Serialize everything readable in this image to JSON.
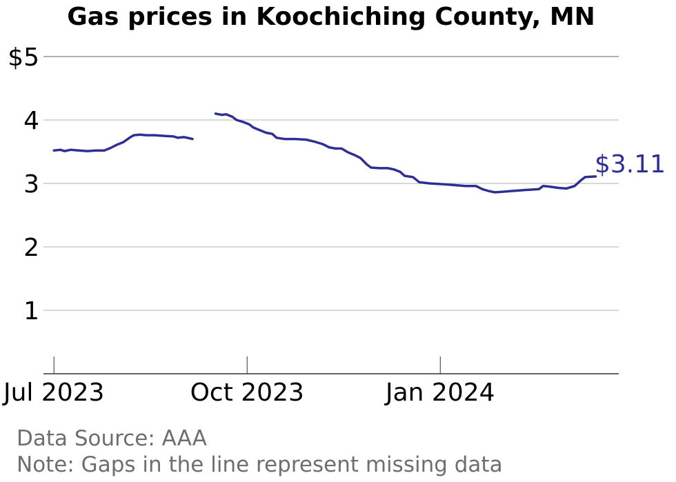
{
  "chart_data": {
    "type": "line",
    "title": "Gas prices in Koochiching County, MN",
    "xlabel": "",
    "ylabel": "",
    "ylim": [
      0,
      5
    ],
    "y_ticks": [
      {
        "value": 1,
        "label": "1"
      },
      {
        "value": 2,
        "label": "2"
      },
      {
        "value": 3,
        "label": "3"
      },
      {
        "value": 4,
        "label": "4"
      },
      {
        "value": 5,
        "label": "$5"
      }
    ],
    "x_range": [
      "2023-06-26",
      "2024-03-26"
    ],
    "x_ticks": [
      {
        "date": "2023-07-01",
        "label": "Jul 2023"
      },
      {
        "date": "2023-10-01",
        "label": "Oct 2023"
      },
      {
        "date": "2024-01-01",
        "label": "Jan 2024"
      }
    ],
    "grid": true,
    "color": "#2e2e96",
    "end_label": "$3.11",
    "series": [
      {
        "segments": [
          [
            [
              "2023-07-01",
              3.52
            ],
            [
              "2023-07-04",
              3.53
            ],
            [
              "2023-07-06",
              3.51
            ],
            [
              "2023-07-09",
              3.53
            ],
            [
              "2023-07-13",
              3.52
            ],
            [
              "2023-07-17",
              3.51
            ],
            [
              "2023-07-21",
              3.52
            ],
            [
              "2023-07-25",
              3.52
            ],
            [
              "2023-07-28",
              3.56
            ],
            [
              "2023-07-31",
              3.61
            ],
            [
              "2023-08-03",
              3.65
            ],
            [
              "2023-08-06",
              3.72
            ],
            [
              "2023-08-08",
              3.76
            ],
            [
              "2023-08-11",
              3.77
            ],
            [
              "2023-08-14",
              3.76
            ],
            [
              "2023-08-18",
              3.76
            ],
            [
              "2023-08-22",
              3.75
            ],
            [
              "2023-08-27",
              3.74
            ],
            [
              "2023-08-29",
              3.72
            ],
            [
              "2023-09-01",
              3.73
            ],
            [
              "2023-09-05",
              3.7
            ]
          ],
          [
            [
              "2023-09-16",
              4.1
            ],
            [
              "2023-09-19",
              4.08
            ],
            [
              "2023-09-21",
              4.09
            ],
            [
              "2023-09-24",
              4.05
            ],
            [
              "2023-09-26",
              4.0
            ],
            [
              "2023-09-29",
              3.97
            ],
            [
              "2023-10-02",
              3.93
            ],
            [
              "2023-10-04",
              3.88
            ],
            [
              "2023-10-07",
              3.84
            ],
            [
              "2023-10-10",
              3.8
            ],
            [
              "2023-10-13",
              3.78
            ],
            [
              "2023-10-15",
              3.72
            ],
            [
              "2023-10-19",
              3.7
            ],
            [
              "2023-10-24",
              3.7
            ],
            [
              "2023-10-29",
              3.69
            ],
            [
              "2023-11-02",
              3.66
            ],
            [
              "2023-11-06",
              3.62
            ],
            [
              "2023-11-09",
              3.57
            ],
            [
              "2023-11-12",
              3.55
            ],
            [
              "2023-11-15",
              3.55
            ],
            [
              "2023-11-18",
              3.49
            ],
            [
              "2023-11-21",
              3.45
            ],
            [
              "2023-11-24",
              3.4
            ],
            [
              "2023-11-27",
              3.3
            ],
            [
              "2023-11-29",
              3.25
            ],
            [
              "2023-12-03",
              3.24
            ],
            [
              "2023-12-07",
              3.24
            ],
            [
              "2023-12-10",
              3.22
            ],
            [
              "2023-12-13",
              3.18
            ],
            [
              "2023-12-15",
              3.12
            ],
            [
              "2023-12-19",
              3.1
            ],
            [
              "2023-12-22",
              3.02
            ],
            [
              "2023-12-27",
              3.0
            ],
            [
              "2024-01-01",
              2.99
            ],
            [
              "2024-01-05",
              2.98
            ],
            [
              "2024-01-09",
              2.97
            ],
            [
              "2024-01-13",
              2.96
            ],
            [
              "2024-01-18",
              2.96
            ],
            [
              "2024-01-21",
              2.91
            ],
            [
              "2024-01-24",
              2.88
            ],
            [
              "2024-01-27",
              2.86
            ],
            [
              "2024-01-31",
              2.87
            ],
            [
              "2024-02-04",
              2.88
            ],
            [
              "2024-02-08",
              2.89
            ],
            [
              "2024-02-12",
              2.9
            ],
            [
              "2024-02-17",
              2.91
            ],
            [
              "2024-02-19",
              2.96
            ],
            [
              "2024-02-22",
              2.95
            ],
            [
              "2024-02-26",
              2.93
            ],
            [
              "2024-03-01",
              2.92
            ],
            [
              "2024-03-05",
              2.96
            ],
            [
              "2024-03-08",
              3.05
            ],
            [
              "2024-03-10",
              3.1
            ],
            [
              "2024-03-15",
              3.11
            ]
          ]
        ]
      }
    ]
  },
  "footer": {
    "source": "Data Source: AAA",
    "note": "Note: Gaps in the line represent missing data"
  }
}
